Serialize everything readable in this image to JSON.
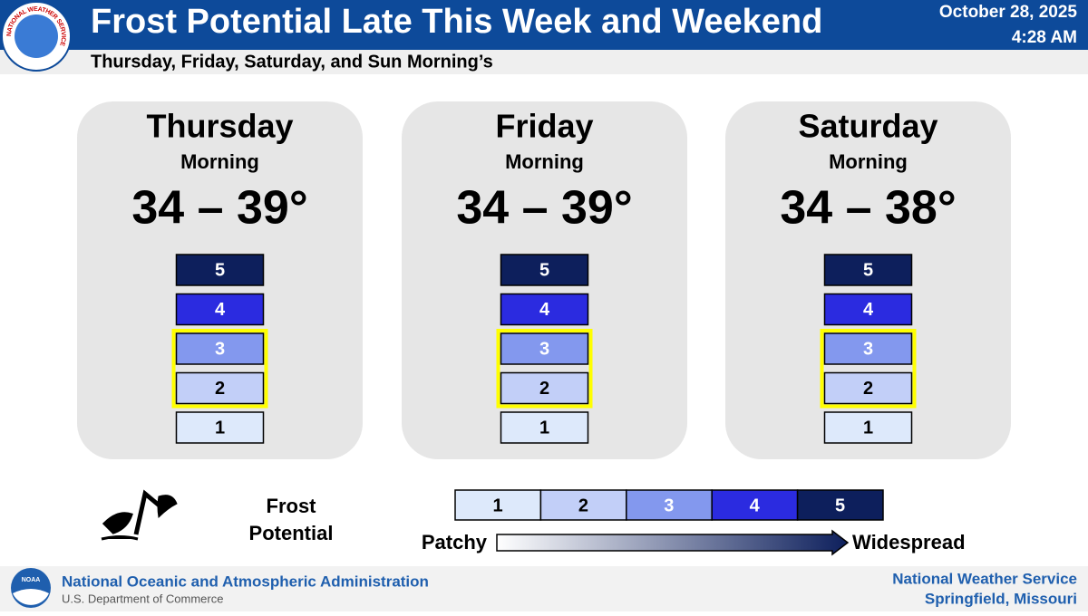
{
  "header": {
    "title": "Frost Potential Late This Week and Weekend",
    "date": "October 28, 2025",
    "time": "4:28 AM",
    "subtitle": "Thursday, Friday, Saturday, and Sun Morning’s",
    "logo_text": "NATIONAL WEATHER SERVICE"
  },
  "panels": [
    {
      "day": "Thursday",
      "period": "Morning",
      "range": "34 – 39°",
      "levels": [
        {
          "label": "5",
          "color": "#0d1f5c",
          "text_color": "#ffffff",
          "highlighted": false
        },
        {
          "label": "4",
          "color": "#2b2be0",
          "text_color": "#ffffff",
          "highlighted": false
        },
        {
          "label": "3",
          "color": "#8398ee",
          "text_color": "#ffffff",
          "highlighted": true
        },
        {
          "label": "2",
          "color": "#c2cff8",
          "text_color": "#000000",
          "highlighted": true
        },
        {
          "label": "1",
          "color": "#dde9fb",
          "text_color": "#000000",
          "highlighted": false
        }
      ]
    },
    {
      "day": "Friday",
      "period": "Morning",
      "range": "34 – 39°",
      "levels": [
        {
          "label": "5",
          "color": "#0d1f5c",
          "text_color": "#ffffff",
          "highlighted": false
        },
        {
          "label": "4",
          "color": "#2b2be0",
          "text_color": "#ffffff",
          "highlighted": false
        },
        {
          "label": "3",
          "color": "#8398ee",
          "text_color": "#ffffff",
          "highlighted": true
        },
        {
          "label": "2",
          "color": "#c2cff8",
          "text_color": "#000000",
          "highlighted": true
        },
        {
          "label": "1",
          "color": "#dde9fb",
          "text_color": "#000000",
          "highlighted": false
        }
      ]
    },
    {
      "day": "Saturday",
      "period": "Morning",
      "range": "34 – 38°",
      "levels": [
        {
          "label": "5",
          "color": "#0d1f5c",
          "text_color": "#ffffff",
          "highlighted": false
        },
        {
          "label": "4",
          "color": "#2b2be0",
          "text_color": "#ffffff",
          "highlighted": false
        },
        {
          "label": "3",
          "color": "#8398ee",
          "text_color": "#ffffff",
          "highlighted": true
        },
        {
          "label": "2",
          "color": "#c2cff8",
          "text_color": "#000000",
          "highlighted": true
        },
        {
          "label": "1",
          "color": "#dde9fb",
          "text_color": "#000000",
          "highlighted": false
        }
      ]
    }
  ],
  "legend": {
    "title_line1": "Frost",
    "title_line2": "Potential",
    "low": "Patchy",
    "high": "Widespread",
    "scale": [
      {
        "label": "1",
        "color": "#dde9fb",
        "text_color": "#000000"
      },
      {
        "label": "2",
        "color": "#c2cff8",
        "text_color": "#000000"
      },
      {
        "label": "3",
        "color": "#8398ee",
        "text_color": "#ffffff"
      },
      {
        "label": "4",
        "color": "#2b2be0",
        "text_color": "#ffffff"
      },
      {
        "label": "5",
        "color": "#0d1f5c",
        "text_color": "#ffffff"
      }
    ]
  },
  "footer": {
    "logo": "NOAA",
    "agency": "National Oceanic and Atmospheric Administration",
    "department": "U.S. Department of Commerce",
    "office_line1": "National Weather Service",
    "office_line2": "Springfield, Missouri"
  }
}
